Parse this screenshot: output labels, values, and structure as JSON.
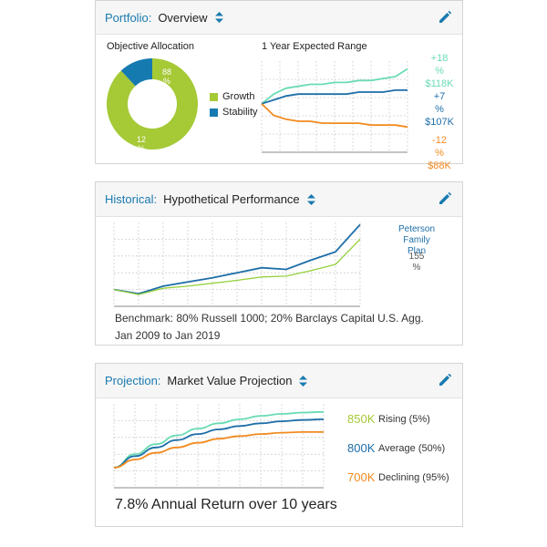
{
  "colors": {
    "accent": "#1a7ab0",
    "growth": "#a6c936",
    "stability": "#157ab0",
    "rising": "#6bdcb4",
    "average": "#1d6ea8",
    "declining": "#f28a1f",
    "portfolio_line": "#1d6ea8",
    "benchmark_line": "#96d13c"
  },
  "portfolio": {
    "kind_label": "Portfolio:",
    "selected_view": "Overview",
    "selector_icon": "up-down-icon",
    "edit_icon": "pencil-icon",
    "allocation_title": "Objective Allocation",
    "allocation": [
      {
        "name": "Growth",
        "value_text": "88",
        "value_suffix": "%",
        "percent": 88
      },
      {
        "name": "Stability",
        "value_text": "12",
        "value_suffix": "%",
        "percent": 12
      }
    ],
    "range_title": "1 Year Expected Range",
    "range_labels": [
      {
        "pct": "+18",
        "suffix": "%",
        "amount": "$118K"
      },
      {
        "pct": "+7",
        "suffix": "%",
        "amount": "$107K"
      },
      {
        "pct": "-12",
        "suffix": "%",
        "amount": "$88K"
      }
    ]
  },
  "historical": {
    "kind_label": "Historical:",
    "selected_view": "Hypothetical Performance",
    "selector_icon": "up-down-icon",
    "edit_icon": "pencil-icon",
    "plan_name_line1": "Peterson",
    "plan_name_line2": "Family",
    "plan_name_line3": "Plan",
    "plan_return_value": "155",
    "plan_return_suffix": "%",
    "benchmark_text": "Benchmark: 80% Russell 1000; 20% Barclays Capital U.S. Agg.",
    "period_text": "Jan 2009 to Jan 2019"
  },
  "projection": {
    "kind_label": "Projection:",
    "selected_view": "Market Value Projection",
    "selector_icon": "up-down-icon",
    "edit_icon": "pencil-icon",
    "scenarios": [
      {
        "value": "850K",
        "label": "Rising (5%)"
      },
      {
        "value": "800K",
        "label": "Average (50%)"
      },
      {
        "value": "700K",
        "label": "Declining (95%)"
      }
    ],
    "summary": "7.8% Annual Return over 10 years"
  },
  "chart_data": [
    {
      "type": "pie",
      "title": "Objective Allocation",
      "categories": [
        "Growth",
        "Stability"
      ],
      "values": [
        88,
        12
      ],
      "legend": "right"
    },
    {
      "type": "line",
      "title": "1 Year Expected Range",
      "x": [
        0,
        1,
        2,
        3,
        4,
        5,
        6,
        7,
        8,
        9,
        10,
        11,
        12
      ],
      "series": [
        {
          "values": [
            0,
            5,
            8,
            9,
            10,
            10,
            11,
            11,
            12,
            12,
            13,
            14,
            18
          ]
        },
        {
          "values": [
            0,
            2,
            4,
            5,
            5,
            5,
            5,
            5,
            6,
            6,
            6,
            7,
            7
          ]
        },
        {
          "values": [
            0,
            -6,
            -8,
            -9,
            -9,
            -10,
            -10,
            -10,
            -10,
            -11,
            -11,
            -11,
            -12
          ]
        }
      ],
      "grid": true
    },
    {
      "type": "line",
      "title": "",
      "x": [
        2009,
        2010,
        2011,
        2012,
        2013,
        2014,
        2015,
        2016,
        2017,
        2018,
        2019
      ],
      "series": [
        {
          "name": "Peterson Family Plan",
          "values": [
            0,
            -10,
            8,
            18,
            28,
            40,
            52,
            48,
            70,
            90,
            155
          ]
        },
        {
          "values": [
            0,
            -12,
            3,
            8,
            15,
            22,
            30,
            32,
            45,
            60,
            120
          ]
        }
      ],
      "grid": true
    },
    {
      "type": "line",
      "title": "",
      "x": [
        0,
        1,
        2,
        3,
        4,
        5,
        6,
        7,
        8,
        9,
        10
      ],
      "series": [
        {
          "name": "Rising (5%)",
          "values": [
            0,
            20,
            35,
            48,
            58,
            66,
            72,
            77,
            80,
            82,
            83
          ]
        },
        {
          "name": "Average (50%)",
          "values": [
            0,
            17,
            30,
            41,
            50,
            57,
            62,
            66,
            69,
            71,
            72
          ]
        },
        {
          "name": "Declining (95%)",
          "values": [
            0,
            12,
            22,
            30,
            37,
            43,
            47,
            50,
            52,
            53,
            53
          ]
        }
      ],
      "grid": true
    }
  ]
}
